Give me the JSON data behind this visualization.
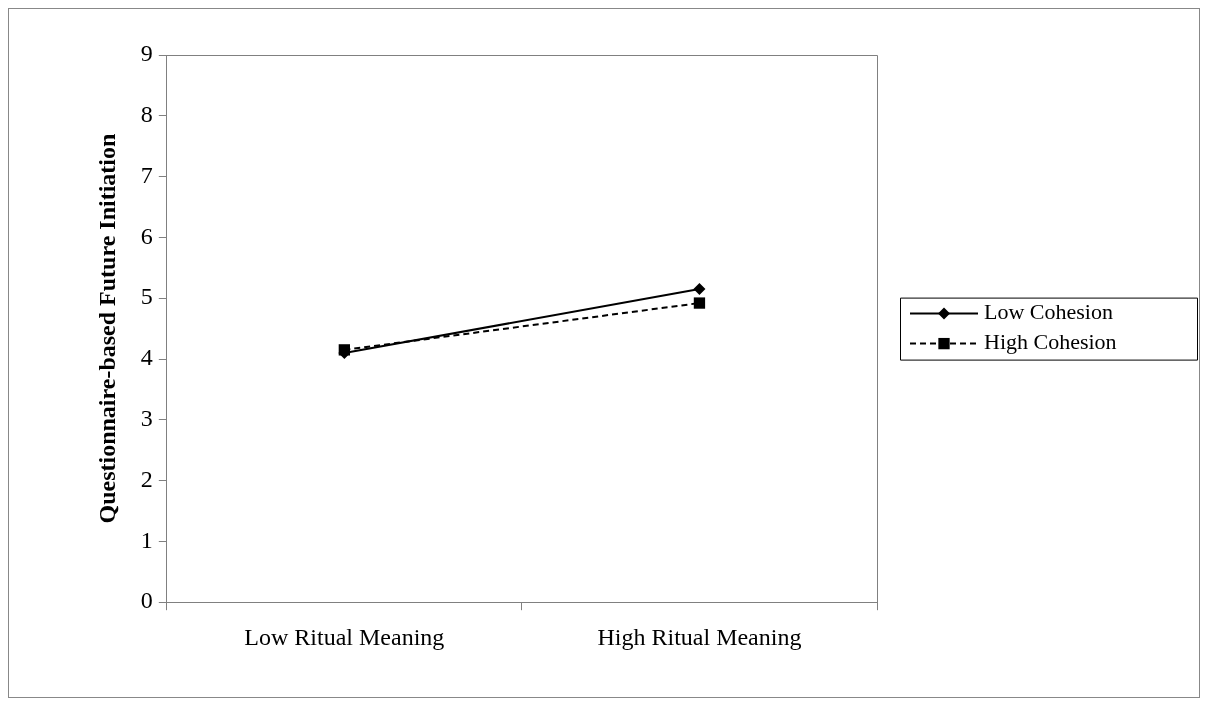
{
  "chart_data": {
    "type": "line",
    "ylabel": "Questionnaire-based Future Initiation",
    "categories": [
      "Low Ritual Meaning",
      "High Ritual Meaning"
    ],
    "series": [
      {
        "name": "Low Cohesion",
        "color": "#000000",
        "values": [
          4.1,
          5.15
        ],
        "marker": "diamond",
        "line_style": "solid"
      },
      {
        "name": "High Cohesion",
        "color": "#000000",
        "values": [
          4.15,
          4.92
        ],
        "marker": "square",
        "line_style": "dashed"
      }
    ],
    "ylim": [
      0,
      9
    ],
    "yticks": [
      0,
      1,
      2,
      3,
      4,
      5,
      6,
      7,
      8,
      9
    ],
    "grid": false,
    "legend": "right"
  }
}
